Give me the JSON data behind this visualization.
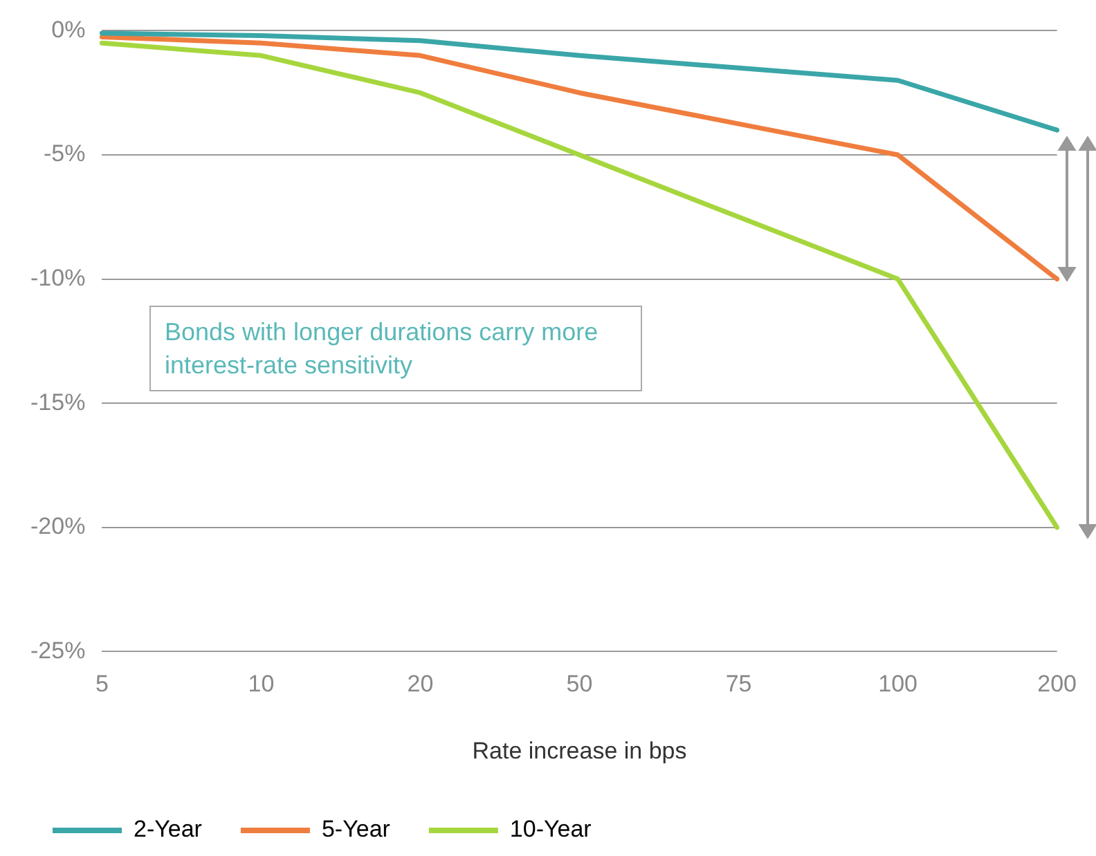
{
  "chart_data": {
    "type": "line",
    "xlabel": "Rate increase in bps",
    "categories": [
      "5",
      "10",
      "20",
      "50",
      "75",
      "100",
      "200"
    ],
    "series": [
      {
        "name": "2-Year",
        "color": "#3aa6a8",
        "values": [
          -0.1,
          -0.2,
          -0.4,
          -1.0,
          -1.5,
          -2,
          -4
        ]
      },
      {
        "name": "5-Year",
        "color": "#ef7d3e",
        "values": [
          -0.25,
          -0.5,
          -1,
          -2.5,
          -3.75,
          -5,
          -10
        ]
      },
      {
        "name": "10-Year",
        "color": "#a6d63e",
        "values": [
          -0.5,
          -1,
          -2.5,
          -5,
          -7.5,
          -10,
          -20
        ]
      }
    ],
    "ylim": [
      -25,
      0
    ],
    "yticks": [
      {
        "value": 0,
        "label": "0%"
      },
      {
        "value": -5,
        "label": "-5%"
      },
      {
        "value": -10,
        "label": "-10%"
      },
      {
        "value": -15,
        "label": "-15%"
      },
      {
        "value": -20,
        "label": "-20%"
      },
      {
        "value": -25,
        "label": "-25%"
      }
    ],
    "grid": "y",
    "legend": "bottom left",
    "marker": "none",
    "line_style": "solid",
    "annotations": [
      "Bonds with longer durations carry more interest-rate sensitivity"
    ]
  }
}
